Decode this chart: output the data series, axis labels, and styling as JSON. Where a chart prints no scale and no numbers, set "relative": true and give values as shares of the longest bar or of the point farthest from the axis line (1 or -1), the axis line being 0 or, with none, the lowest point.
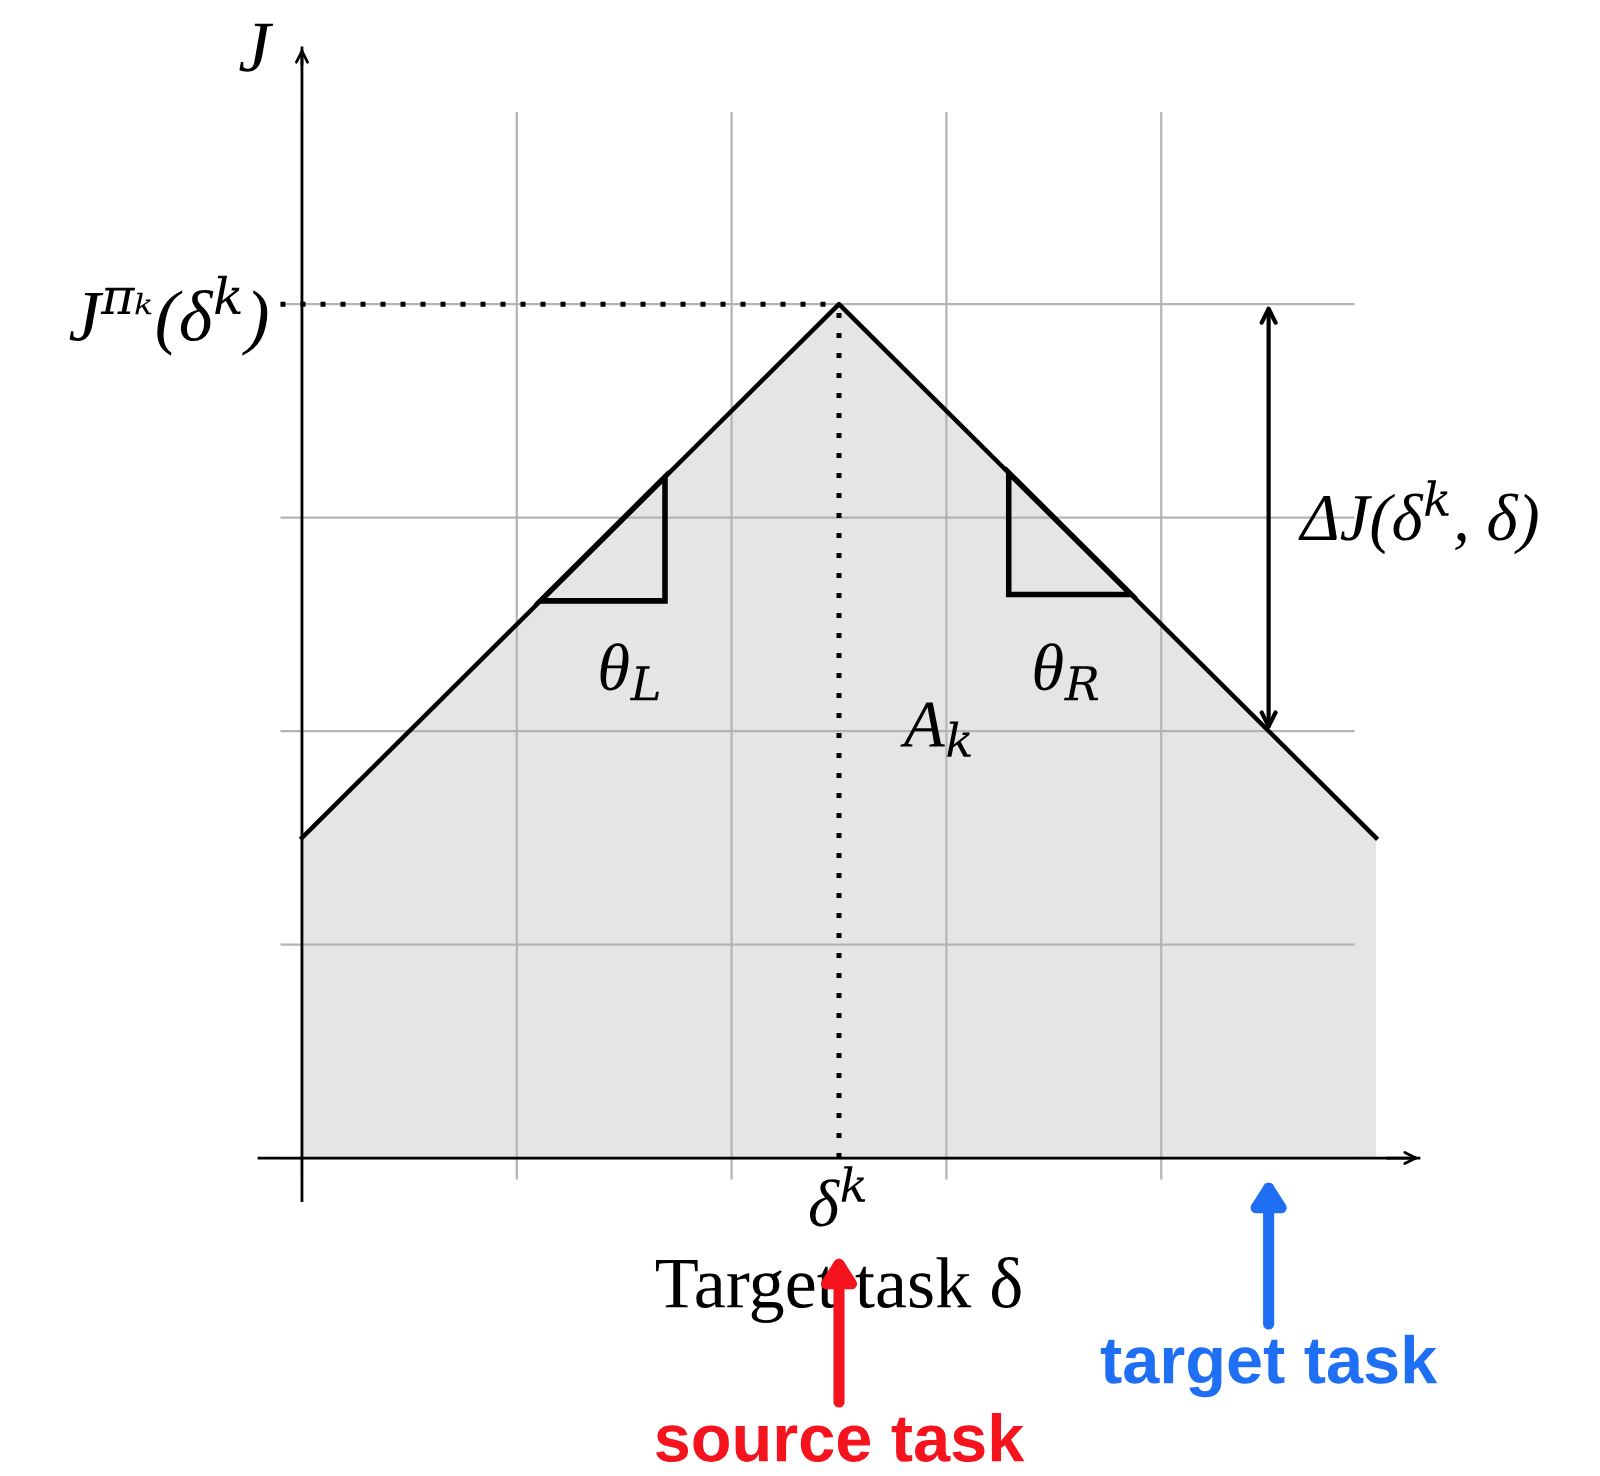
{
  "chart_data": {
    "type": "area",
    "relative": true,
    "xlabel": "Target task δ",
    "ylabel": "J",
    "categories": [
      null,
      null,
      null
    ],
    "grid": true,
    "series": [
      {
        "color": "#e5e5e5",
        "values": [
          0.375,
          1,
          0.375
        ]
      }
    ],
    "ref_lines": [
      {
        "axis": "y",
        "value": 1,
        "label": "J$^{πₖ}$(δ$^{k}$)",
        "line_style": "dotted",
        "color": "#000000"
      }
    ],
    "annotations": [
      "θ$_{L}$",
      "θ$_{R}$",
      "A$_{k}$",
      "ΔJ(δ$^{k}$, δ)",
      "δ$^{k}$",
      "source task",
      "target task"
    ]
  }
}
